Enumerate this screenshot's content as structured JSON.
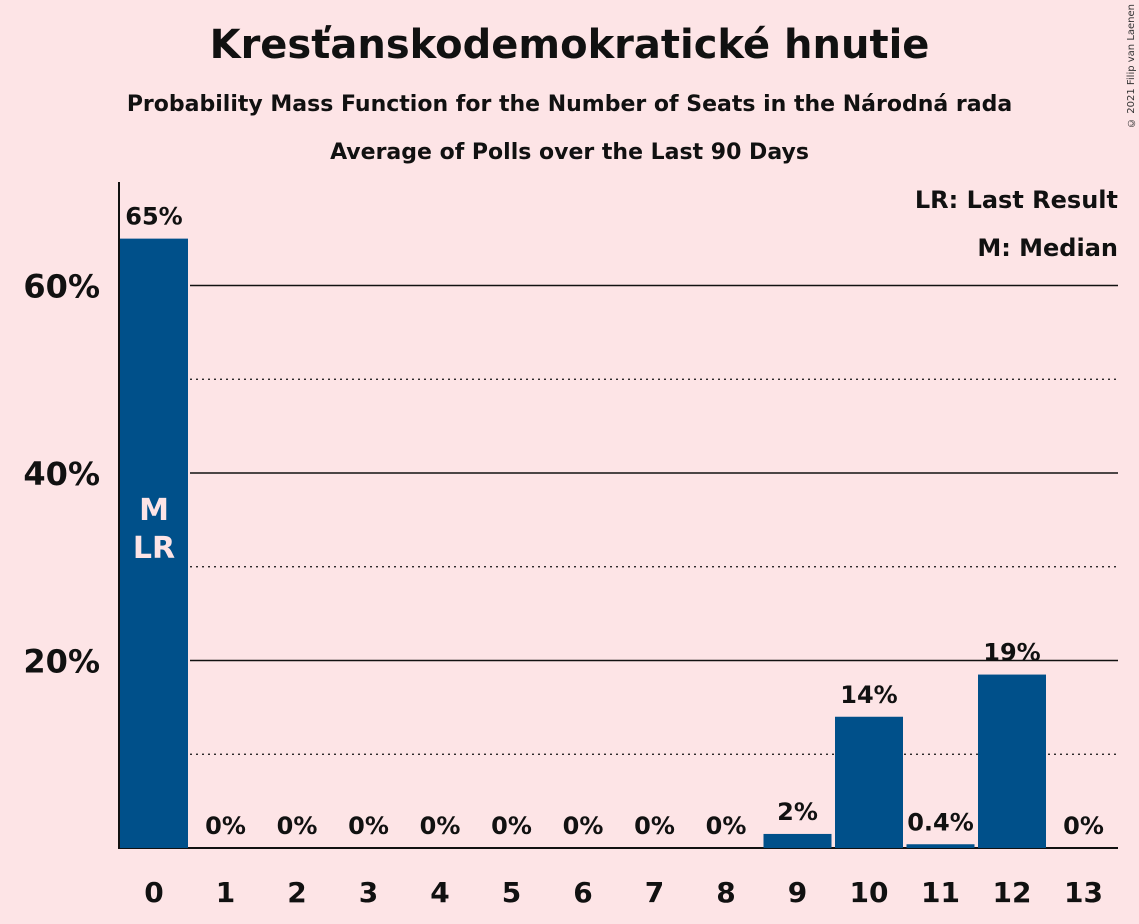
{
  "chart_data": {
    "type": "bar",
    "title": "Kresťanskodemokratické hnutie",
    "subtitle": "Probability Mass Function for the Number of Seats in the Národná rada",
    "subtitle2": "Average of Polls over the Last 90 Days",
    "categories": [
      "0",
      "1",
      "2",
      "3",
      "4",
      "5",
      "6",
      "7",
      "8",
      "9",
      "10",
      "11",
      "12",
      "13"
    ],
    "values": [
      65,
      0,
      0,
      0,
      0,
      0,
      0,
      0,
      0,
      1.5,
      14,
      0.4,
      18.5,
      0
    ],
    "data_labels": [
      "65%",
      "0%",
      "0%",
      "0%",
      "0%",
      "0%",
      "0%",
      "0%",
      "0%",
      "2%",
      "14%",
      "0.4%",
      "19%",
      "0%"
    ],
    "ylim": [
      0,
      70
    ],
    "yticks": [
      20,
      40,
      60
    ],
    "ytick_labels": [
      "20%",
      "40%",
      "60%"
    ],
    "bar_color": "#00508a",
    "median_bar": "0",
    "last_result_bar": "0",
    "in_bar_labels": [
      "M",
      "LR"
    ],
    "legend": [
      "LR: Last Result",
      "M: Median"
    ],
    "legend_position": "top-right",
    "copyright": "© 2021 Filip van Laenen"
  }
}
